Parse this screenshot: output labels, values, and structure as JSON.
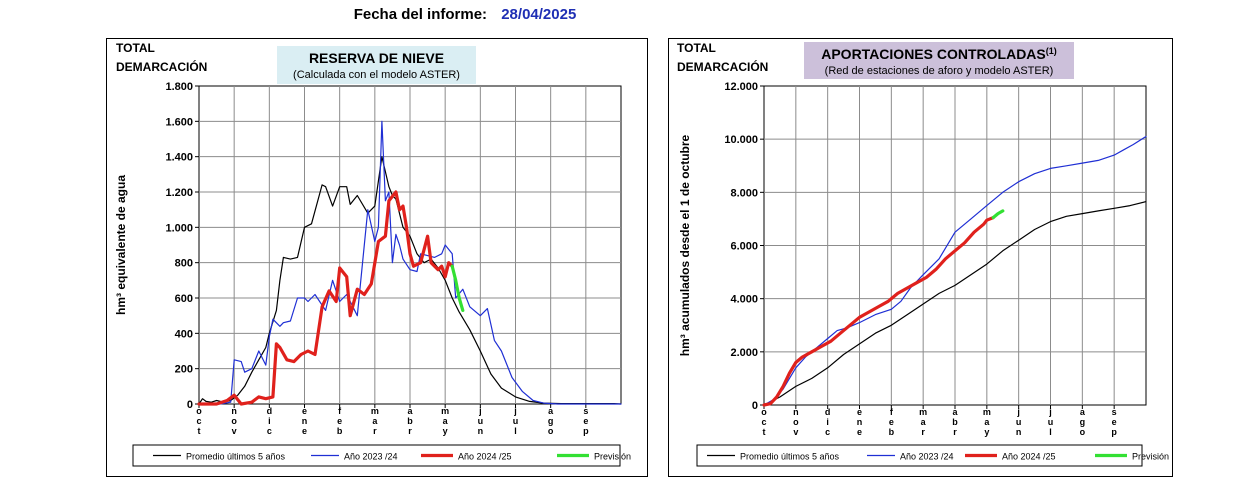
{
  "report": {
    "date_label": "Fecha del informe:",
    "date_value": "28/04/2025"
  },
  "chart_data": [
    {
      "type": "line",
      "region_label": [
        "TOTAL",
        "DEMARCACIÓN"
      ],
      "title": "RESERVA DE NIEVE",
      "subtitle": "(Calculada con el modelo ASTER)",
      "title_bg": "#daeef3",
      "ylabel": "hm³ equivalente de agua",
      "xlabel": "",
      "ylim": [
        0,
        1800
      ],
      "yticks": [
        0,
        200,
        400,
        600,
        800,
        1000,
        1200,
        1400,
        1600,
        1800
      ],
      "ytick_labels": [
        "0",
        "200",
        "400",
        "600",
        "800",
        "1.000",
        "1.200",
        "1.400",
        "1.600",
        "1.800"
      ],
      "x_range": [
        0,
        12
      ],
      "month_ticks": [
        "Oct",
        "Nov",
        "Dic",
        "Ene",
        "Feb",
        "Mar",
        "Abr",
        "May",
        "Jun",
        "Jul",
        "Ago",
        "Sep"
      ],
      "grid": true,
      "legend_position": "bottom",
      "series": [
        {
          "name": "Promedio últimos 5 años",
          "color": "#000000",
          "width": 1.2,
          "x": [
            0,
            0.1,
            0.2,
            0.35,
            0.5,
            0.7,
            0.9,
            1.1,
            1.3,
            1.5,
            1.7,
            1.9,
            2.0,
            2.2,
            2.3,
            2.4,
            2.6,
            2.8,
            3.0,
            3.2,
            3.5,
            3.6,
            3.8,
            4.0,
            4.2,
            4.3,
            4.5,
            4.8,
            5.0,
            5.2,
            5.4,
            5.5,
            5.6,
            5.8,
            6.0,
            6.2,
            6.4,
            6.6,
            6.8,
            7.0,
            7.2,
            7.4,
            7.7,
            8.0,
            8.3,
            8.6,
            9.0,
            9.4,
            9.8,
            10.3,
            11,
            11.8,
            12
          ],
          "y": [
            0,
            30,
            15,
            10,
            20,
            10,
            20,
            50,
            100,
            180,
            250,
            320,
            400,
            530,
            700,
            830,
            820,
            830,
            1000,
            1020,
            1240,
            1230,
            1120,
            1230,
            1230,
            1130,
            1180,
            1080,
            1120,
            1400,
            1230,
            1180,
            1160,
            1000,
            950,
            850,
            800,
            820,
            770,
            700,
            600,
            520,
            420,
            300,
            170,
            90,
            40,
            15,
            5,
            2,
            2,
            2,
            0
          ]
        },
        {
          "name": "Año 2023 /24",
          "color": "#1f2fd4",
          "width": 1.2,
          "x": [
            0,
            0.3,
            0.6,
            0.9,
            1.0,
            1.2,
            1.3,
            1.5,
            1.7,
            1.9,
            2.0,
            2.1,
            2.3,
            2.4,
            2.6,
            2.8,
            3.0,
            3.1,
            3.3,
            3.6,
            3.8,
            4.0,
            4.2,
            4.5,
            4.8,
            5.0,
            5.1,
            5.2,
            5.3,
            5.4,
            5.5,
            5.6,
            5.7,
            5.8,
            6.0,
            6.2,
            6.3,
            6.5,
            6.7,
            6.9,
            7.0,
            7.2,
            7.3,
            7.5,
            7.7,
            8.0,
            8.2,
            8.4,
            8.6,
            8.9,
            9.2,
            9.5,
            9.8,
            10.2,
            10.8,
            11.5,
            11.9,
            12
          ],
          "y": [
            0,
            0,
            0,
            10,
            250,
            240,
            180,
            200,
            300,
            220,
            380,
            480,
            440,
            460,
            470,
            600,
            600,
            580,
            620,
            530,
            700,
            580,
            620,
            500,
            1100,
            920,
            1000,
            1600,
            1150,
            1200,
            800,
            960,
            900,
            820,
            760,
            750,
            850,
            840,
            830,
            850,
            900,
            850,
            600,
            650,
            550,
            500,
            540,
            360,
            300,
            150,
            70,
            20,
            5,
            0,
            0,
            0,
            0,
            0
          ]
        },
        {
          "name": "Año 2024 /25",
          "color": "#e0211c",
          "width": 3.2,
          "x": [
            0,
            0.5,
            0.8,
            1.0,
            1.2,
            1.5,
            1.7,
            1.9,
            2.1,
            2.2,
            2.3,
            2.5,
            2.7,
            2.9,
            3.1,
            3.3,
            3.5,
            3.7,
            3.9,
            4.0,
            4.2,
            4.3,
            4.5,
            4.7,
            4.9,
            5.1,
            5.3,
            5.4,
            5.6,
            5.7,
            5.8,
            5.9,
            6.0,
            6.1,
            6.3,
            6.5,
            6.6,
            6.8,
            6.9,
            7.0,
            7.1,
            7.2
          ],
          "y": [
            0,
            0,
            20,
            50,
            0,
            10,
            40,
            30,
            40,
            340,
            320,
            250,
            240,
            280,
            300,
            280,
            550,
            640,
            580,
            770,
            720,
            500,
            650,
            620,
            680,
            920,
            950,
            1150,
            1200,
            1100,
            1120,
            1000,
            850,
            780,
            800,
            950,
            800,
            760,
            780,
            720,
            800,
            780
          ]
        },
        {
          "name": "Previsión",
          "color": "#33e033",
          "width": 3.2,
          "x": [
            7.2,
            7.3,
            7.4,
            7.5
          ],
          "y": [
            780,
            700,
            600,
            530
          ]
        }
      ]
    },
    {
      "type": "line",
      "region_label": [
        "TOTAL",
        "DEMARCACIÓN"
      ],
      "title": "APORTACIONES CONTROLADAS",
      "title_sup": "(1)",
      "subtitle": "(Red de estaciones de aforo y modelo ASTER)",
      "title_bg": "#ccc0da",
      "ylabel": "hm³ acumulados desde el 1 de octubre",
      "xlabel": "",
      "ylim": [
        0,
        12000
      ],
      "yticks": [
        0,
        2000,
        4000,
        6000,
        8000,
        10000,
        12000
      ],
      "ytick_labels": [
        "0",
        "2.000",
        "4.000",
        "6.000",
        "8.000",
        "10.000",
        "12.000"
      ],
      "x_range": [
        0,
        12
      ],
      "month_ticks": [
        "Oct",
        "Nov",
        "Dic",
        "Ene",
        "Feb",
        "Mar",
        "Abr",
        "May",
        "Jun",
        "Jul",
        "Ago",
        "Sep"
      ],
      "grid": true,
      "legend_position": "bottom",
      "series": [
        {
          "name": "Promedio últimos 5 años",
          "color": "#000000",
          "width": 1.2,
          "x": [
            0,
            0.5,
            1.0,
            1.5,
            2.0,
            2.5,
            3.0,
            3.5,
            4.0,
            4.5,
            5.0,
            5.5,
            6.0,
            6.5,
            7.0,
            7.5,
            8.0,
            8.5,
            9.0,
            9.5,
            10.0,
            10.5,
            11.0,
            11.5,
            12.0
          ],
          "y": [
            0,
            300,
            700,
            1000,
            1400,
            1900,
            2300,
            2700,
            3000,
            3400,
            3800,
            4200,
            4500,
            4900,
            5300,
            5800,
            6200,
            6600,
            6900,
            7100,
            7200,
            7300,
            7400,
            7500,
            7650
          ]
        },
        {
          "name": "Año 2023 /24",
          "color": "#1f2fd4",
          "width": 1.2,
          "x": [
            0,
            0.3,
            0.6,
            1.0,
            1.3,
            1.6,
            2.0,
            2.3,
            2.6,
            3.0,
            3.5,
            4.0,
            4.3,
            4.6,
            5.0,
            5.5,
            6.0,
            6.5,
            7.0,
            7.5,
            8.0,
            8.5,
            9.0,
            9.5,
            10.0,
            10.5,
            11.0,
            11.3,
            11.6,
            12.0
          ],
          "y": [
            0,
            200,
            600,
            1400,
            1800,
            2100,
            2500,
            2800,
            2900,
            3100,
            3400,
            3600,
            3900,
            4400,
            4900,
            5500,
            6500,
            7000,
            7500,
            8000,
            8400,
            8700,
            8900,
            9000,
            9100,
            9200,
            9400,
            9600,
            9800,
            10100
          ]
        },
        {
          "name": "Año 2024 /25",
          "color": "#e0211c",
          "width": 3.2,
          "x": [
            0,
            0.2,
            0.4,
            0.6,
            0.8,
            1.0,
            1.2,
            1.5,
            1.8,
            2.1,
            2.4,
            2.7,
            3.0,
            3.3,
            3.6,
            3.9,
            4.2,
            4.5,
            4.8,
            5.1,
            5.4,
            5.7,
            6.0,
            6.3,
            6.6,
            6.9,
            7.0,
            7.2
          ],
          "y": [
            0,
            50,
            300,
            700,
            1200,
            1600,
            1800,
            2000,
            2200,
            2400,
            2700,
            3000,
            3300,
            3500,
            3700,
            3900,
            4200,
            4400,
            4600,
            4800,
            5100,
            5500,
            5800,
            6100,
            6500,
            6800,
            6950,
            7050
          ]
        },
        {
          "name": "Previsión",
          "color": "#33e033",
          "width": 3.2,
          "x": [
            7.2,
            7.35,
            7.5
          ],
          "y": [
            7050,
            7200,
            7300
          ]
        }
      ]
    }
  ]
}
